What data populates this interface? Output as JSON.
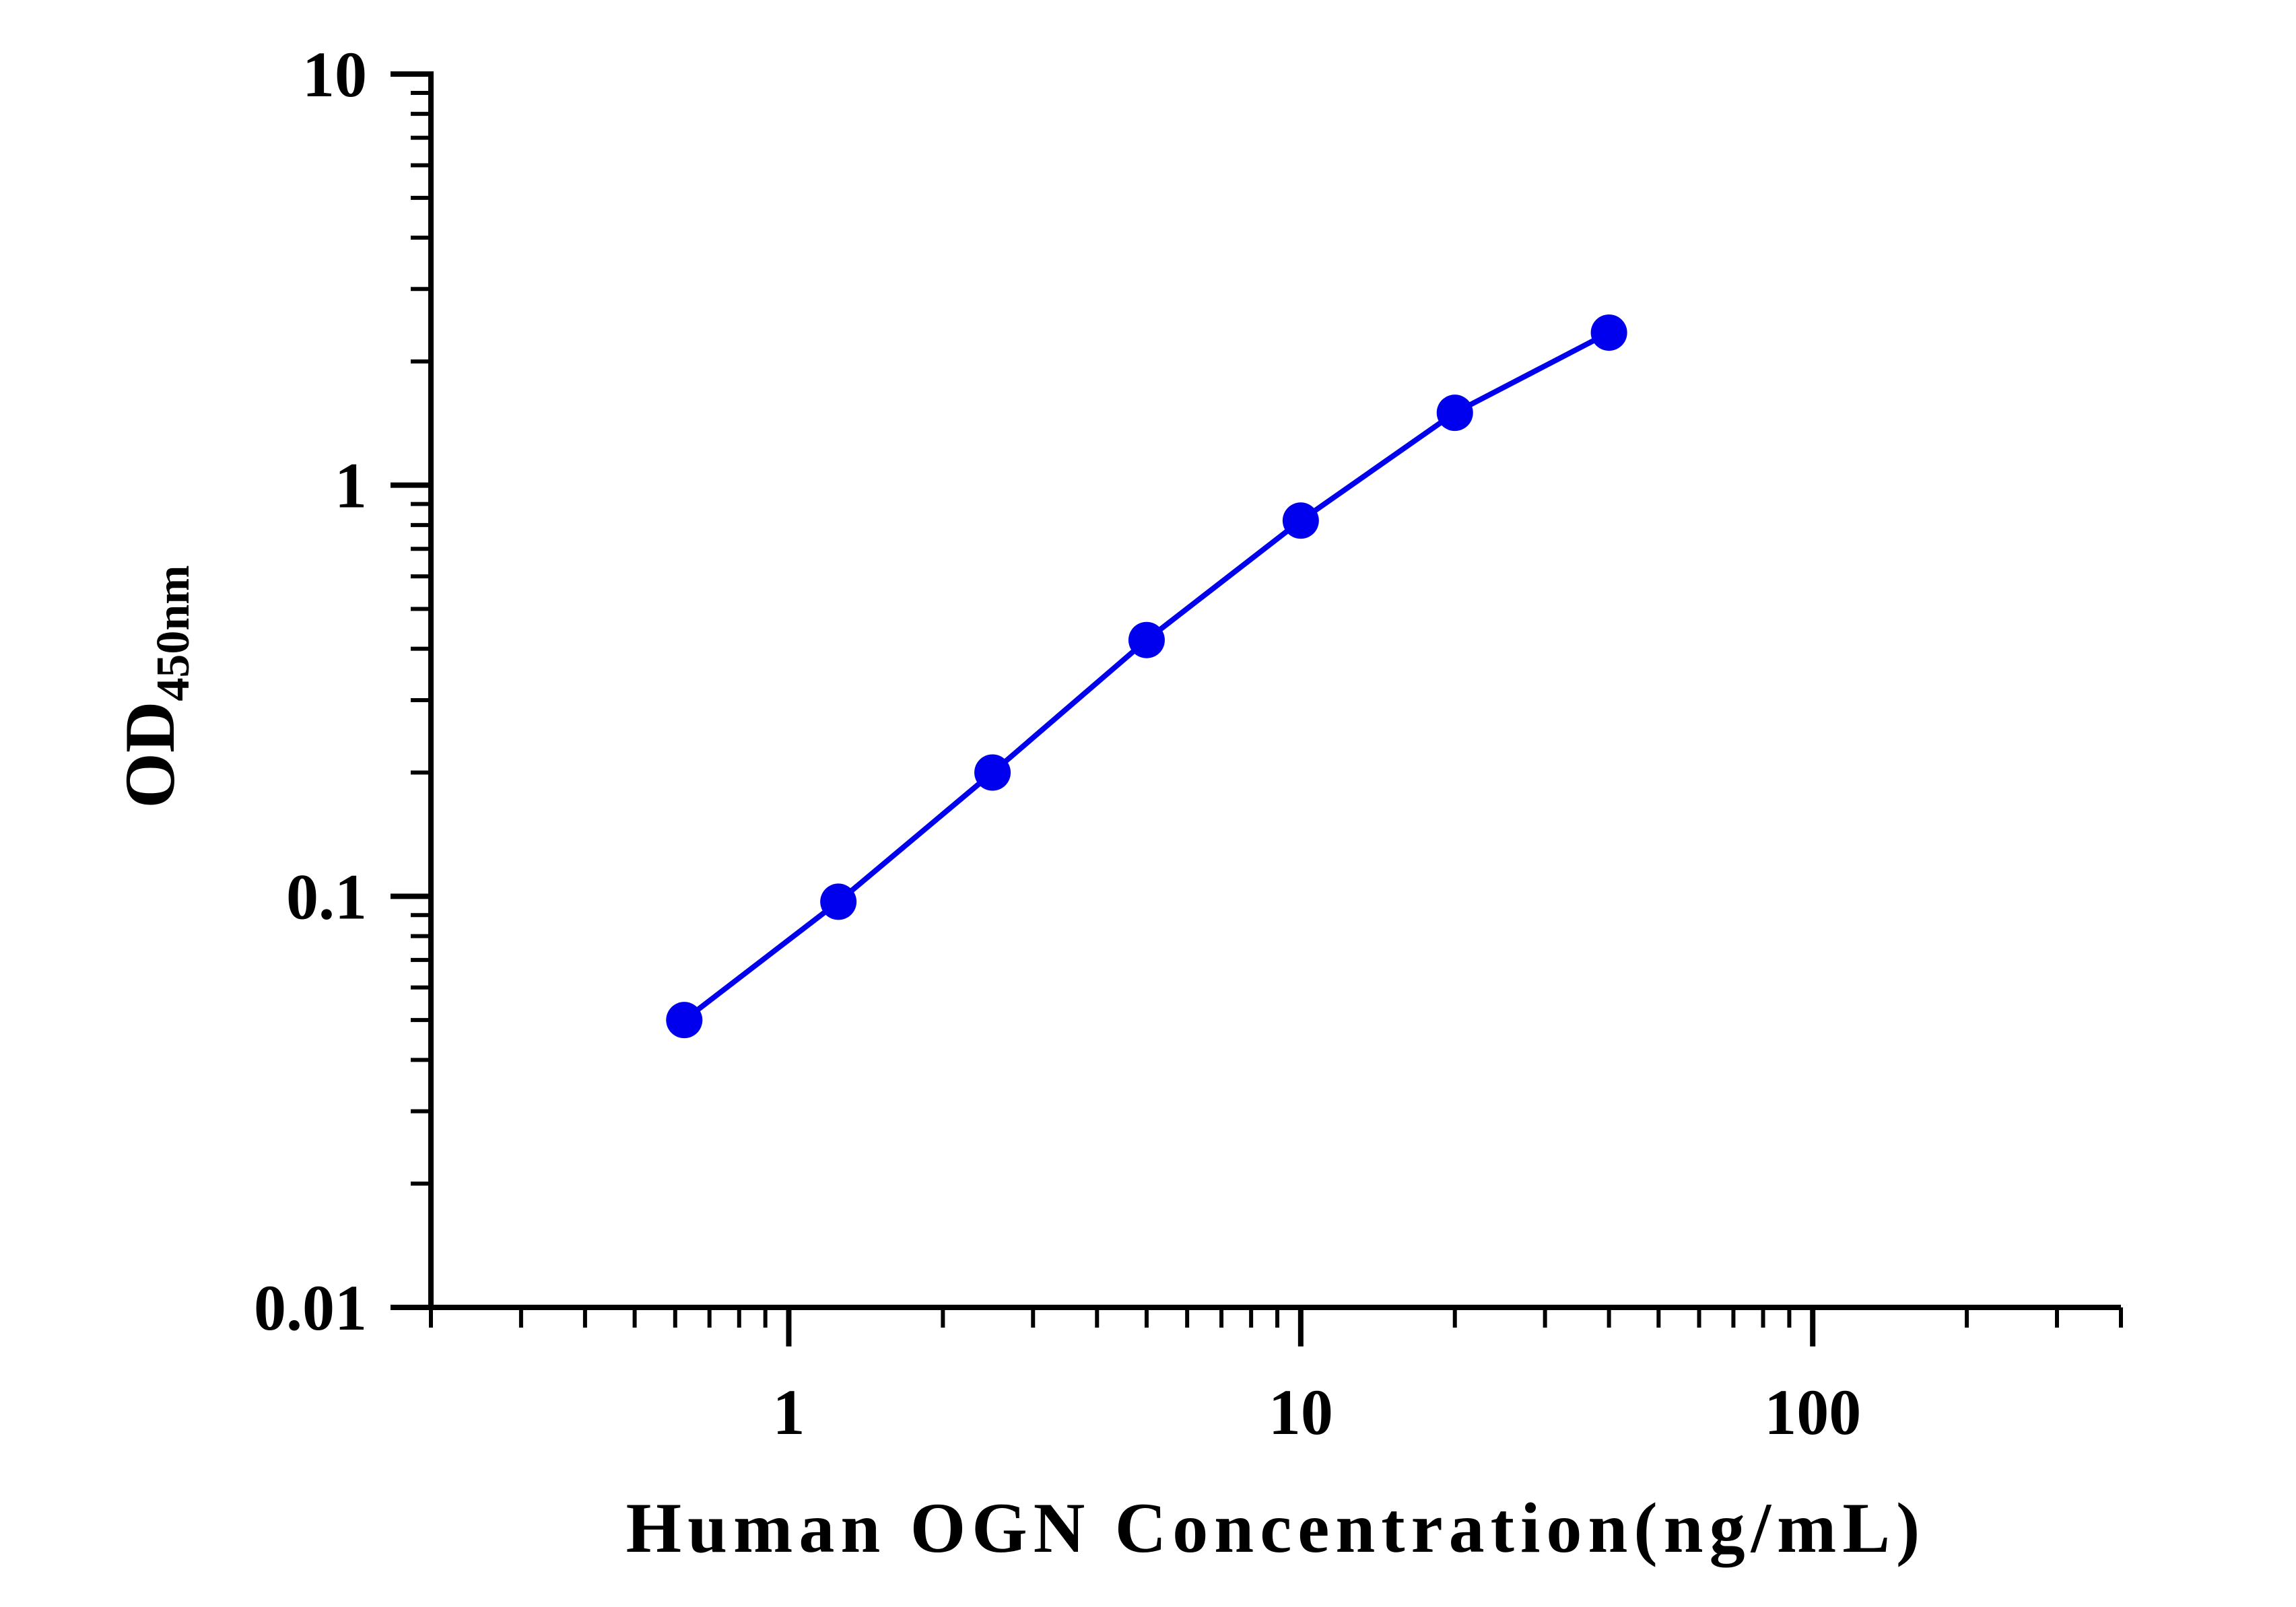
{
  "chart_data": {
    "type": "line",
    "title": "",
    "xlabel": "Human OGN Concentration(ng/mL)",
    "ylabel_main": "OD",
    "ylabel_sub": "450nm",
    "x_scale": "log",
    "y_scale": "log",
    "xlim": [
      0.2,
      400
    ],
    "ylim": [
      0.01,
      10
    ],
    "x_tick_labels": [
      {
        "value": 1,
        "label": "1"
      },
      {
        "value": 10,
        "label": "10"
      },
      {
        "value": 100,
        "label": "100"
      }
    ],
    "y_tick_labels": [
      {
        "value": 0.01,
        "label": "0.01"
      },
      {
        "value": 0.1,
        "label": "0.1"
      },
      {
        "value": 1,
        "label": "1"
      },
      {
        "value": 10,
        "label": "10"
      }
    ],
    "grid": false,
    "series": [
      {
        "color": "#0000ee",
        "x": [
          0.625,
          1.25,
          2.5,
          5,
          10,
          20,
          40
        ],
        "y": [
          0.05,
          0.097,
          0.2,
          0.42,
          0.82,
          1.5,
          2.35
        ]
      }
    ]
  }
}
